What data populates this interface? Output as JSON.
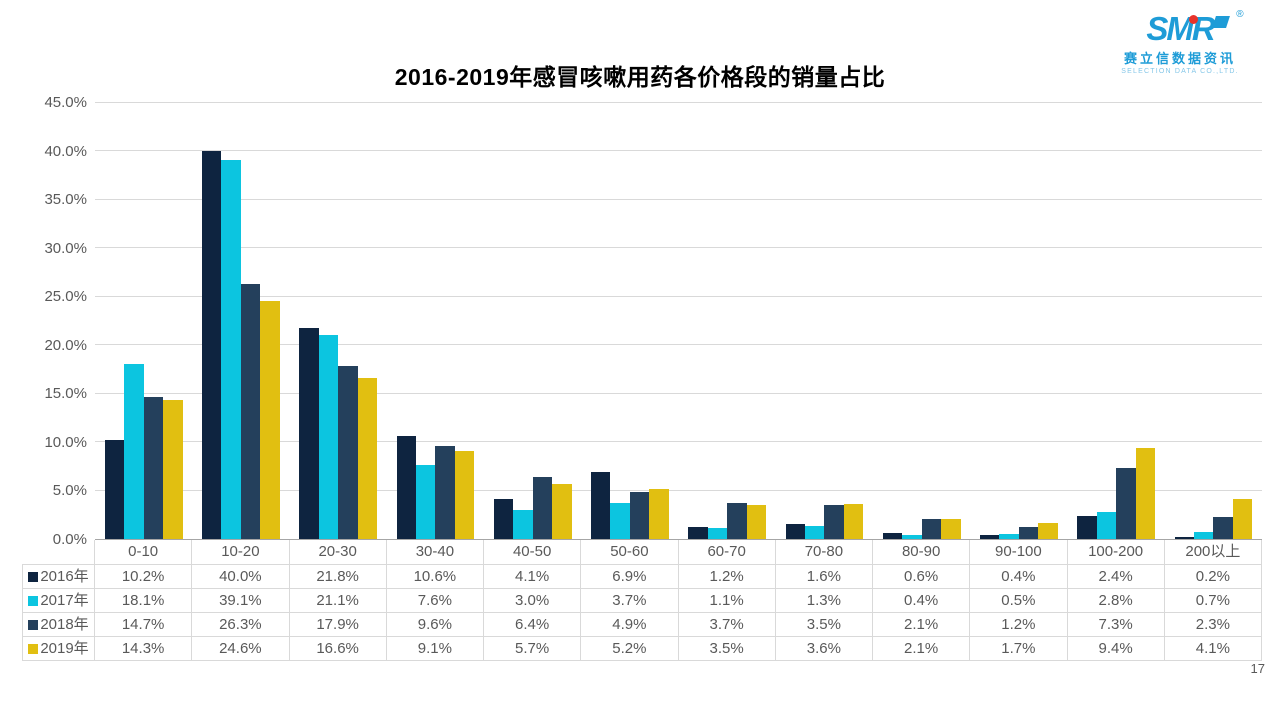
{
  "title": "2016-2019年感冒咳嗽用药各价格段的销量占比",
  "logo": {
    "brand": "SMR",
    "registered": "®",
    "company_cn": "赛立信数据资讯",
    "company_en": "SELECTION DATA CO.,LTD.",
    "brand_color": "#1e9cd7",
    "dot_color": "#e8332a"
  },
  "page_number": "17",
  "chart_data": {
    "type": "bar",
    "title": "2016-2019年感冒咳嗽用药各价格段的销量占比",
    "categories": [
      "0-10",
      "10-20",
      "20-30",
      "30-40",
      "40-50",
      "50-60",
      "60-70",
      "70-80",
      "80-90",
      "90-100",
      "100-200",
      "200以上"
    ],
    "series": [
      {
        "name": "2016年",
        "color": "#0e2440",
        "values": [
          10.2,
          40.0,
          21.8,
          10.6,
          4.1,
          6.9,
          1.2,
          1.6,
          0.6,
          0.4,
          2.4,
          0.2
        ]
      },
      {
        "name": "2017年",
        "color": "#0cc5e0",
        "values": [
          18.1,
          39.1,
          21.1,
          7.6,
          3.0,
          3.7,
          1.1,
          1.3,
          0.4,
          0.5,
          2.8,
          0.7
        ]
      },
      {
        "name": "2018年",
        "color": "#24405c",
        "values": [
          14.7,
          26.3,
          17.9,
          9.6,
          6.4,
          4.9,
          3.7,
          3.5,
          2.1,
          1.2,
          7.3,
          2.3
        ]
      },
      {
        "name": "2019年",
        "color": "#e1bf11",
        "values": [
          14.3,
          24.6,
          16.6,
          9.1,
          5.7,
          5.2,
          3.5,
          3.6,
          2.1,
          1.7,
          9.4,
          4.1
        ]
      }
    ],
    "ylim": [
      0,
      45
    ],
    "ytick_step": 5,
    "value_suffix": "%",
    "grid": true,
    "legend_position": "table-left",
    "xlabel": "",
    "ylabel": ""
  }
}
